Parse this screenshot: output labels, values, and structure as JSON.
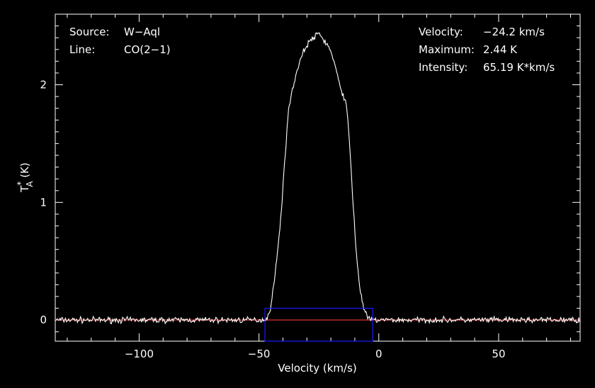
{
  "chart_data": {
    "type": "line",
    "xlabel": "Velocity (km/s)",
    "ylabel_main": "T",
    "ylabel_sup": "*",
    "ylabel_sub": "A",
    "ylabel_unit": " (K)",
    "xlim": [
      -135,
      84
    ],
    "ylim": [
      -0.18,
      2.6
    ],
    "x_ticks": [
      -100,
      -50,
      0,
      50
    ],
    "x_tick_labels": [
      "−100",
      "−50",
      "0",
      "50"
    ],
    "y_ticks": [
      0,
      1,
      2
    ],
    "y_tick_labels": [
      "0",
      "1",
      "2"
    ],
    "info_left": [
      {
        "key": "Source:",
        "value": "W−Aql"
      },
      {
        "key": "Line:",
        "value": "CO(2−1)"
      }
    ],
    "info_right": [
      {
        "key": "Velocity:",
        "value": "−24.2 km/s"
      },
      {
        "key": "Maximum:",
        "value": "2.44 K"
      },
      {
        "key": "Intensity:",
        "value": "65.19 K*km/s"
      }
    ],
    "baseline": {
      "y": 0,
      "color": "#e03030"
    },
    "integration_window": {
      "x": [
        -47.5,
        -2.5
      ],
      "y": [
        -0.18,
        0.1
      ],
      "color": "#1a1aff"
    },
    "spectrum_profile": [
      [
        -135,
        0
      ],
      [
        -48,
        0
      ],
      [
        -46.5,
        0.02
      ],
      [
        -45,
        0.12
      ],
      [
        -43.5,
        0.35
      ],
      [
        -42,
        0.62
      ],
      [
        -40.5,
        0.98
      ],
      [
        -39,
        1.42
      ],
      [
        -38,
        1.72
      ],
      [
        -36.5,
        1.92
      ],
      [
        -35,
        2.05
      ],
      [
        -33,
        2.2
      ],
      [
        -31,
        2.3
      ],
      [
        -29,
        2.37
      ],
      [
        -27,
        2.4
      ],
      [
        -25,
        2.44
      ],
      [
        -23,
        2.38
      ],
      [
        -21,
        2.33
      ],
      [
        -19,
        2.22
      ],
      [
        -17,
        2.05
      ],
      [
        -15,
        1.92
      ],
      [
        -13.5,
        1.82
      ],
      [
        -12.5,
        1.6
      ],
      [
        -11.5,
        1.25
      ],
      [
        -10.5,
        0.92
      ],
      [
        -9.5,
        0.6
      ],
      [
        -8,
        0.28
      ],
      [
        -6.5,
        0.12
      ],
      [
        -5,
        0.03
      ],
      [
        -3.5,
        0
      ],
      [
        84,
        0
      ]
    ],
    "spectrum_noise_rms": 0.015,
    "line_color": "#ffffff"
  }
}
